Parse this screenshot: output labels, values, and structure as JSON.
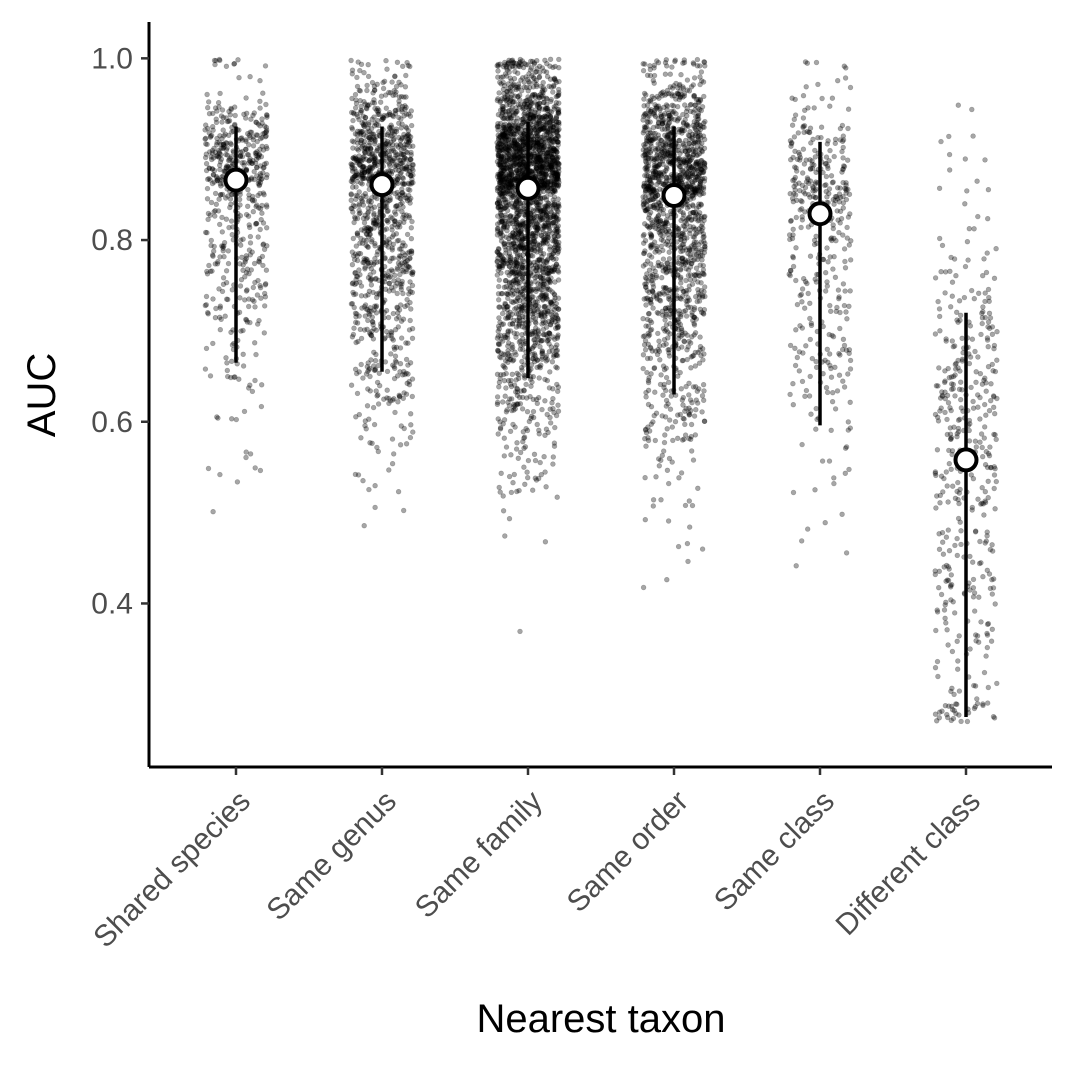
{
  "chart_data": {
    "type": "scatter",
    "subtype": "jittered strip plot with median and interval",
    "title": "",
    "xlabel": "Nearest taxon",
    "ylabel": "AUC",
    "ylim": [
      0.22,
      1.04
    ],
    "yticks": [
      0.4,
      0.6,
      0.8,
      1.0
    ],
    "ytick_labels": [
      "0.4",
      "0.6",
      "0.8",
      "1.0"
    ],
    "grid": false,
    "legend": "none",
    "categories": [
      "Shared species",
      "Same genus",
      "Same family",
      "Same order",
      "Same class",
      "Different class"
    ],
    "summary": [
      {
        "median": 0.866,
        "lower": 0.665,
        "upper": 0.925
      },
      {
        "median": 0.861,
        "lower": 0.655,
        "upper": 0.925
      },
      {
        "median": 0.857,
        "lower": 0.648,
        "upper": 0.93
      },
      {
        "median": 0.849,
        "lower": 0.63,
        "upper": 0.925
      },
      {
        "median": 0.829,
        "lower": 0.596,
        "upper": 0.908
      },
      {
        "median": 0.558,
        "lower": 0.275,
        "upper": 0.72
      }
    ],
    "point_counts": [
      550,
      1100,
      2600,
      1500,
      380,
      420
    ],
    "point_color": "#000000",
    "point_opacity": 0.35,
    "summary_marker_fill": "#ffffff",
    "summary_marker_stroke": "#000000"
  }
}
